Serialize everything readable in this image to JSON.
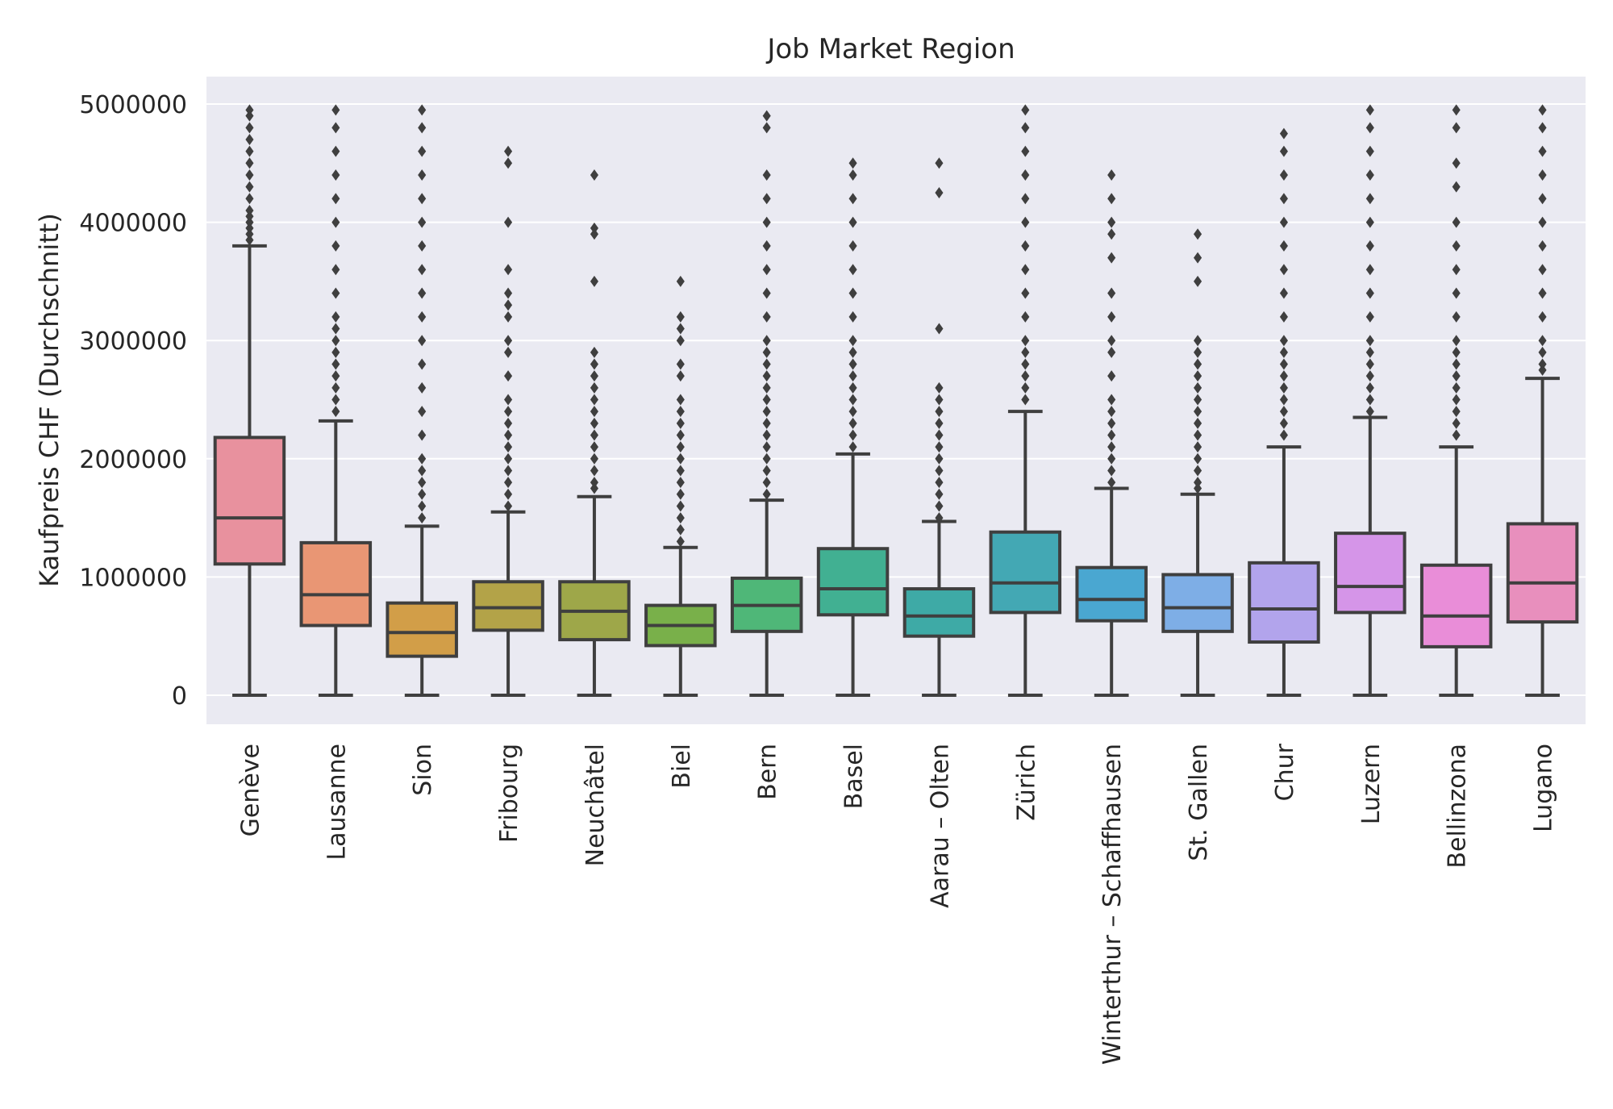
{
  "chart_data": {
    "type": "box",
    "title": "Job Market Region",
    "xlabel": "",
    "ylabel": "Kaufpreis CHF (Durchschnitt)",
    "ylim": [
      -240000,
      5230000
    ],
    "yticks": [
      0,
      1000000,
      2000000,
      3000000,
      4000000,
      5000000
    ],
    "ytick_labels": [
      "0",
      "1000000",
      "2000000",
      "3000000",
      "4000000",
      "5000000"
    ],
    "grid": true,
    "legend": "none",
    "categories": [
      "Genève",
      "Lausanne",
      "Sion",
      "Fribourg",
      "Neuchâtel",
      "Biel",
      "Bern",
      "Basel",
      "Aarau – Olten",
      "Zürich",
      "Winterthur – Schaffhausen",
      "St. Gallen",
      "Chur",
      "Luzern",
      "Bellinzona",
      "Lugano"
    ],
    "boxes": [
      {
        "category": "Genève",
        "min": 0,
        "q1": 1110000,
        "median": 1500000,
        "q3": 2180000,
        "max": 3800000,
        "color": "#e8919e",
        "outliers": [
          3850000,
          3900000,
          3950000,
          4000000,
          4050000,
          4100000,
          4200000,
          4300000,
          4400000,
          4500000,
          4600000,
          4700000,
          4800000,
          4900000,
          4950000
        ]
      },
      {
        "category": "Lausanne",
        "min": 0,
        "q1": 590000,
        "median": 850000,
        "q3": 1290000,
        "max": 2320000,
        "color": "#e99674",
        "outliers": [
          2400000,
          2500000,
          2600000,
          2700000,
          2800000,
          2900000,
          3000000,
          3100000,
          3200000,
          3400000,
          3600000,
          3800000,
          4000000,
          4200000,
          4400000,
          4600000,
          4800000,
          4950000
        ]
      },
      {
        "category": "Sion",
        "min": 0,
        "q1": 330000,
        "median": 530000,
        "q3": 780000,
        "max": 1430000,
        "color": "#d29e48",
        "outliers": [
          1500000,
          1600000,
          1700000,
          1800000,
          1900000,
          2000000,
          2200000,
          2400000,
          2600000,
          2800000,
          3000000,
          3200000,
          3400000,
          3600000,
          3800000,
          4000000,
          4200000,
          4400000,
          4600000,
          4800000,
          4950000
        ]
      },
      {
        "category": "Fribourg",
        "min": 0,
        "q1": 550000,
        "median": 740000,
        "q3": 960000,
        "max": 1550000,
        "color": "#b3a348",
        "outliers": [
          1600000,
          1700000,
          1800000,
          1900000,
          2000000,
          2100000,
          2200000,
          2300000,
          2400000,
          2500000,
          2700000,
          2900000,
          3000000,
          3200000,
          3300000,
          3400000,
          3600000,
          4000000,
          4500000,
          4600000
        ]
      },
      {
        "category": "Neuchâtel",
        "min": 0,
        "q1": 470000,
        "median": 710000,
        "q3": 960000,
        "max": 1680000,
        "color": "#9ea749",
        "outliers": [
          1750000,
          1800000,
          1900000,
          2000000,
          2100000,
          2200000,
          2300000,
          2400000,
          2500000,
          2600000,
          2700000,
          2800000,
          2900000,
          3500000,
          3900000,
          3950000,
          4400000
        ]
      },
      {
        "category": "Biel",
        "min": 0,
        "q1": 420000,
        "median": 590000,
        "q3": 760000,
        "max": 1250000,
        "color": "#79b04a",
        "outliers": [
          1300000,
          1400000,
          1500000,
          1600000,
          1700000,
          1800000,
          1900000,
          2000000,
          2100000,
          2200000,
          2300000,
          2400000,
          2500000,
          2700000,
          2800000,
          3000000,
          3100000,
          3200000,
          3500000
        ]
      },
      {
        "category": "Bern",
        "min": 0,
        "q1": 540000,
        "median": 760000,
        "q3": 990000,
        "max": 1650000,
        "color": "#4fb778",
        "outliers": [
          1700000,
          1800000,
          1900000,
          2000000,
          2100000,
          2200000,
          2300000,
          2400000,
          2500000,
          2600000,
          2700000,
          2800000,
          2900000,
          3000000,
          3200000,
          3400000,
          3600000,
          3800000,
          4000000,
          4200000,
          4400000,
          4800000,
          4900000
        ]
      },
      {
        "category": "Basel",
        "min": 0,
        "q1": 680000,
        "median": 900000,
        "q3": 1240000,
        "max": 2040000,
        "color": "#41b092",
        "outliers": [
          2100000,
          2200000,
          2300000,
          2400000,
          2500000,
          2600000,
          2700000,
          2800000,
          2900000,
          3000000,
          3200000,
          3400000,
          3600000,
          3800000,
          4000000,
          4200000,
          4400000,
          4500000
        ]
      },
      {
        "category": "Aarau – Olten",
        "min": 0,
        "q1": 500000,
        "median": 670000,
        "q3": 900000,
        "max": 1470000,
        "color": "#3eaaa6",
        "outliers": [
          1500000,
          1600000,
          1700000,
          1800000,
          1900000,
          2000000,
          2100000,
          2200000,
          2300000,
          2400000,
          2500000,
          2600000,
          3100000,
          4250000,
          4500000
        ]
      },
      {
        "category": "Zürich",
        "min": 0,
        "q1": 700000,
        "median": 950000,
        "q3": 1380000,
        "max": 2400000,
        "color": "#43a8b4",
        "outliers": [
          2500000,
          2600000,
          2700000,
          2800000,
          2900000,
          3000000,
          3200000,
          3400000,
          3600000,
          3800000,
          4000000,
          4200000,
          4400000,
          4600000,
          4800000,
          4950000
        ]
      },
      {
        "category": "Winterthur – Schaffhausen",
        "min": 0,
        "q1": 630000,
        "median": 810000,
        "q3": 1080000,
        "max": 1750000,
        "color": "#4aa7d1",
        "outliers": [
          1800000,
          1900000,
          2000000,
          2100000,
          2200000,
          2300000,
          2400000,
          2500000,
          2700000,
          2900000,
          3000000,
          3200000,
          3400000,
          3700000,
          3900000,
          4000000,
          4200000,
          4400000
        ]
      },
      {
        "category": "St. Gallen",
        "min": 0,
        "q1": 540000,
        "median": 740000,
        "q3": 1020000,
        "max": 1700000,
        "color": "#7eaee6",
        "outliers": [
          1750000,
          1800000,
          1900000,
          2000000,
          2100000,
          2200000,
          2300000,
          2400000,
          2500000,
          2600000,
          2700000,
          2800000,
          2900000,
          3000000,
          3500000,
          3700000,
          3900000
        ]
      },
      {
        "category": "Chur",
        "min": 0,
        "q1": 450000,
        "median": 730000,
        "q3": 1120000,
        "max": 2100000,
        "color": "#b2a4ec",
        "outliers": [
          2200000,
          2300000,
          2400000,
          2500000,
          2600000,
          2700000,
          2800000,
          2900000,
          3000000,
          3200000,
          3400000,
          3600000,
          3800000,
          4000000,
          4200000,
          4400000,
          4600000,
          4750000
        ]
      },
      {
        "category": "Luzern",
        "min": 0,
        "q1": 700000,
        "median": 920000,
        "q3": 1370000,
        "max": 2350000,
        "color": "#d595e8",
        "outliers": [
          2400000,
          2500000,
          2600000,
          2700000,
          2800000,
          2900000,
          3000000,
          3200000,
          3400000,
          3600000,
          3800000,
          4000000,
          4200000,
          4400000,
          4600000,
          4800000,
          4950000
        ]
      },
      {
        "category": "Bellinzona",
        "min": 0,
        "q1": 410000,
        "median": 670000,
        "q3": 1100000,
        "max": 2100000,
        "color": "#e98dd8",
        "outliers": [
          2200000,
          2300000,
          2400000,
          2500000,
          2600000,
          2700000,
          2800000,
          2900000,
          3000000,
          3200000,
          3400000,
          3600000,
          3800000,
          4000000,
          4300000,
          4500000,
          4800000,
          4950000
        ]
      },
      {
        "category": "Lugano",
        "min": 0,
        "q1": 620000,
        "median": 950000,
        "q3": 1450000,
        "max": 2680000,
        "color": "#e88fbd",
        "outliers": [
          2750000,
          2800000,
          2900000,
          3000000,
          3200000,
          3400000,
          3600000,
          3800000,
          4000000,
          4200000,
          4400000,
          4600000,
          4800000,
          4950000
        ]
      }
    ]
  }
}
